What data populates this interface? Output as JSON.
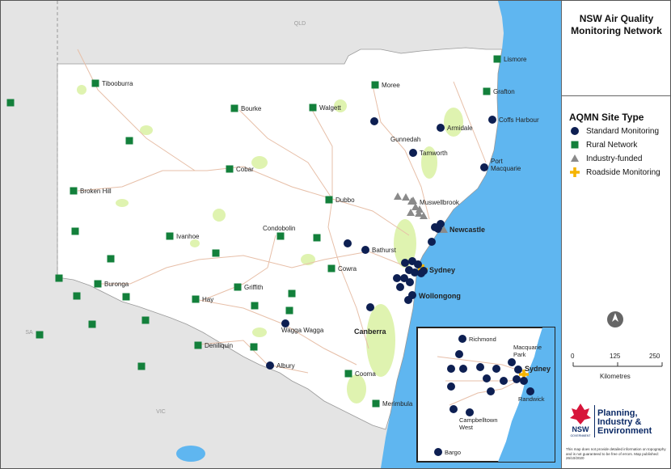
{
  "panel": {
    "title_line1": "NSW Air Quality",
    "title_line2": "Monitoring Network",
    "legend_title": "AQMN Site Type",
    "legend": [
      {
        "label": "Standard Monitoring",
        "symbol": "circle",
        "color": "#0d1f52"
      },
      {
        "label": "Rural Network",
        "symbol": "square",
        "color": "#13803b"
      },
      {
        "label": "Industry-funded",
        "symbol": "triangle",
        "color": "#8a8a8a"
      },
      {
        "label": "Roadside Monitoring",
        "symbol": "cross",
        "color": "#f5b400"
      }
    ],
    "north_icon": "north-arrow-icon",
    "scale": {
      "ticks": [
        "0",
        "125",
        "250"
      ],
      "unit": "Kilometres"
    },
    "logo": {
      "badge": "NSW",
      "badge_sub": "GOVERNMENT",
      "name_line1": "Planning,",
      "name_line2": "Industry &",
      "name_line3": "Environment"
    },
    "disclaimer": "This map does not provide detailed information on topography and is not guaranteed to be free of errors. Map published: 26/10/2020"
  },
  "map": {
    "colors": {
      "ocean": "#5fb6f0",
      "land": "#ffffff",
      "outside": "#e4e4e4",
      "parks": "#dff3b0",
      "roads": "#e7bfa8",
      "border": "#999999"
    },
    "states": [
      {
        "label": "QLD"
      },
      {
        "label": "SA"
      },
      {
        "label": "VIC"
      }
    ],
    "places": [
      {
        "label": "Lismore",
        "type": "rural"
      },
      {
        "label": "Tibooburra",
        "type": "rural"
      },
      {
        "label": "Moree",
        "type": "rural"
      },
      {
        "label": "Grafton",
        "type": "rural"
      },
      {
        "label": "Bourke",
        "type": "rural"
      },
      {
        "label": "Walgett",
        "type": "rural"
      },
      {
        "label": "Armidale",
        "type": "standard"
      },
      {
        "label": "Coffs Harbour",
        "type": "standard"
      },
      {
        "label": "Gunnedah",
        "type": "standard"
      },
      {
        "label": "Tamworth",
        "type": "standard"
      },
      {
        "label": "Port\nMacquarie",
        "type": "standard"
      },
      {
        "label": "Cobar",
        "type": "rural"
      },
      {
        "label": "Broken Hill",
        "type": "rural"
      },
      {
        "label": "Dubbo",
        "type": "rural"
      },
      {
        "label": "Muswellbrook",
        "type": "industry"
      },
      {
        "label": "Newcastle",
        "type": "standard",
        "bold": true
      },
      {
        "label": "Condobolin",
        "type": "rural"
      },
      {
        "label": "Ivanhoe",
        "type": "rural"
      },
      {
        "label": "Bathurst",
        "type": "standard"
      },
      {
        "label": "Sydney",
        "type": "roadside",
        "bold": true
      },
      {
        "label": "Cowra",
        "type": "rural"
      },
      {
        "label": "Buronga",
        "type": "rural"
      },
      {
        "label": "Griffith",
        "type": "rural"
      },
      {
        "label": "Wollongong",
        "type": "standard",
        "bold": true
      },
      {
        "label": "Hay",
        "type": "rural"
      },
      {
        "label": "Wagga Wagga",
        "type": "standard"
      },
      {
        "label": "Canberra",
        "type": "text",
        "bold": true
      },
      {
        "label": "Deniliquin",
        "type": "rural"
      },
      {
        "label": "Albury",
        "type": "standard"
      },
      {
        "label": "Cooma",
        "type": "rural"
      },
      {
        "label": "Merimbula",
        "type": "rural"
      }
    ],
    "inset": {
      "places": [
        {
          "label": "Richmond"
        },
        {
          "label": "Macquarie\nPark"
        },
        {
          "label": "Sydney",
          "bold": true
        },
        {
          "label": "Randwick"
        },
        {
          "label": "Campbelltown\nWest"
        },
        {
          "label": "Bargo"
        }
      ]
    }
  }
}
